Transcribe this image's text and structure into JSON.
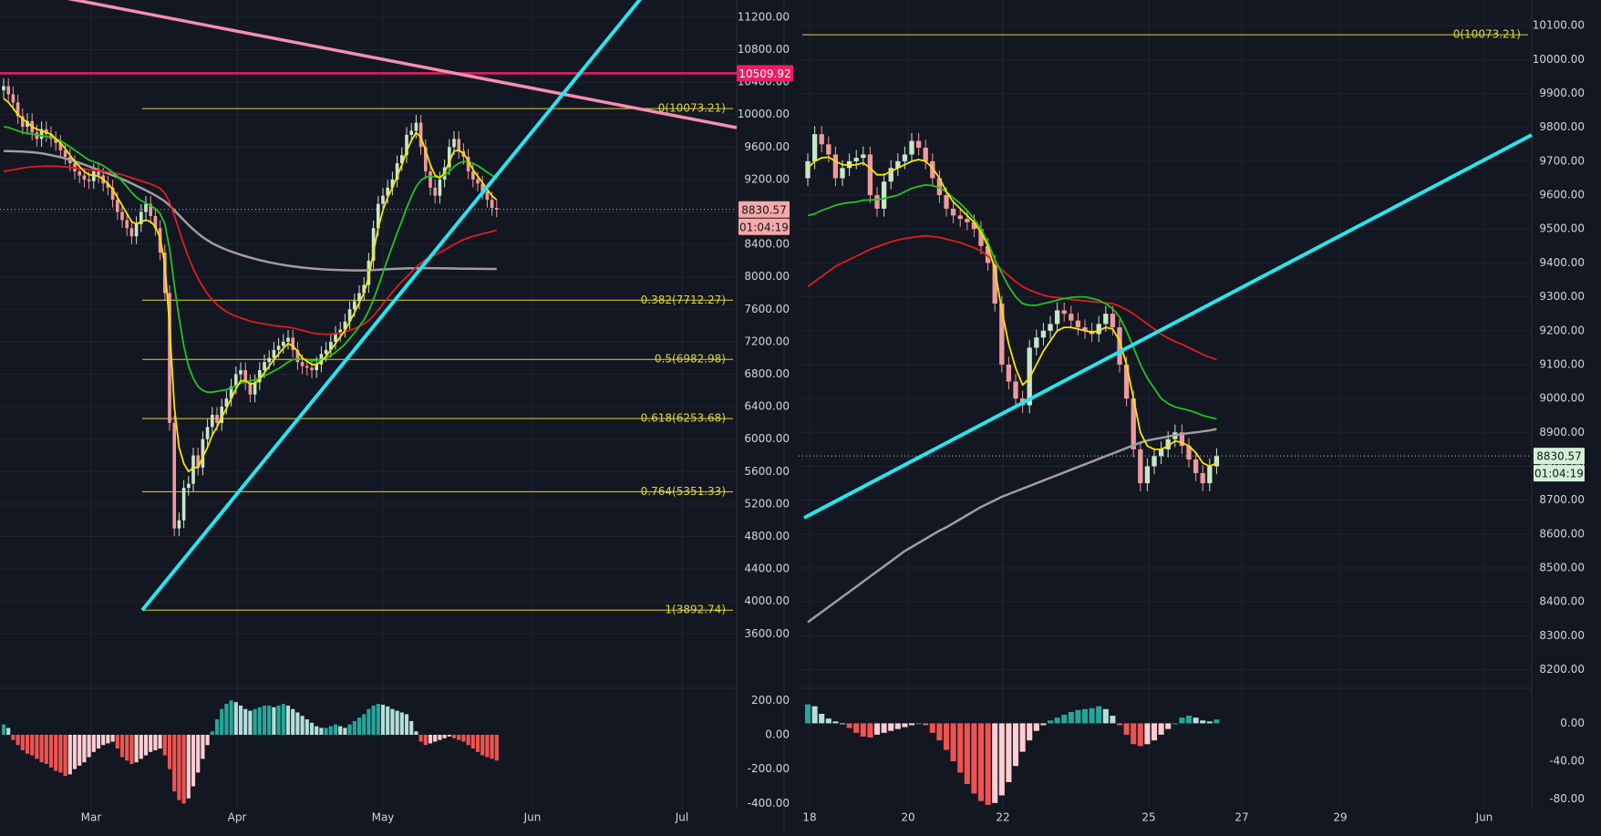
{
  "colors": {
    "background": "#131722",
    "grid": "#1f2433",
    "axis_text": "#d1d4dc",
    "up": "#c8e6c9",
    "down": "#ef9a9a",
    "fib": "#e0d43c",
    "trend_cyan": "#26e5f0",
    "trend_pink": "#f48fb1",
    "resistance": "#e91e63",
    "ma_yellow": "#f7e600",
    "ma_green": "#22c322",
    "ma_red": "#e01d1d",
    "ma_gray": "#9e9e9e",
    "hist_up_strong": "#26a69a",
    "hist_up_weak": "#b2dfdb",
    "hist_down_strong": "#ef5350",
    "hist_down_weak": "#ffcdd2"
  },
  "chart_data": [
    {
      "type": "candlestick",
      "panel": "left-daily",
      "x_ticks": [
        "Mar",
        "Apr",
        "May",
        "Jun",
        "Jul"
      ],
      "y_ticks": [
        "11200.00",
        "10800.00",
        "10400.00",
        "10000.00",
        "9600.00",
        "9200.00",
        "8800.00",
        "8400.00",
        "8000.00",
        "7600.00",
        "7200.00",
        "6800.00",
        "6400.00",
        "6000.00",
        "5600.00",
        "5200.00",
        "4800.00",
        "4400.00",
        "4000.00",
        "3600.00"
      ],
      "ylim": [
        3300,
        11300
      ],
      "price_label": "8830.57",
      "countdown_label": "01:04:19",
      "resistance_label": "10509.92",
      "resistance_value": 10509.92,
      "fib_levels": [
        {
          "label": "0(10073.21)",
          "value": 10073.21
        },
        {
          "label": "0.382(7712.27)",
          "value": 7712.27
        },
        {
          "label": "0.5(6982.98)",
          "value": 6982.98
        },
        {
          "label": "0.618(6253.68)",
          "value": 6253.68
        },
        {
          "label": "0.764(5351.33)",
          "value": 5351.33
        },
        {
          "label": "1(3892.74)",
          "value": 3892.74
        }
      ],
      "close": [
        10350,
        10250,
        10150,
        9980,
        9850,
        9920,
        9780,
        9700,
        9820,
        9760,
        9700,
        9650,
        9560,
        9480,
        9400,
        9300,
        9250,
        9200,
        9180,
        9300,
        9250,
        9150,
        9100,
        8950,
        8800,
        8700,
        8600,
        8500,
        8650,
        8800,
        8900,
        8750,
        8600,
        8300,
        7800,
        6200,
        4900,
        5000,
        5400,
        5450,
        5800,
        5650,
        6000,
        6150,
        6300,
        6200,
        6400,
        6500,
        6650,
        6800,
        6850,
        6700,
        6550,
        6700,
        6850,
        6950,
        7000,
        7100,
        7150,
        7200,
        7250,
        7100,
        6950,
        6900,
        6880,
        6850,
        6920,
        7050,
        7100,
        7200,
        7300,
        7350,
        7450,
        7600,
        7700,
        7800,
        7900,
        8200,
        8600,
        8900,
        9000,
        9100,
        9200,
        9400,
        9500,
        9750,
        9800,
        9900,
        9600,
        9300,
        9100,
        9000,
        9200,
        9350,
        9600,
        9700,
        9550,
        9480,
        9300,
        9200,
        9150,
        9050,
        8950,
        8850,
        8830
      ],
      "ma_yellow_series": [
        10200,
        10150,
        10080,
        10000,
        9950,
        9900,
        9850,
        9820,
        9800,
        9780,
        9760,
        9700,
        9650,
        9580,
        9500,
        9420,
        9360,
        9300,
        9260,
        9250,
        9240,
        9200,
        9150,
        9080,
        8980,
        8880,
        8780,
        8680,
        8650,
        8680,
        8700,
        8680,
        8620,
        8480,
        8150,
        7400,
        6400,
        5900,
        5700,
        5600,
        5650,
        5650,
        5780,
        5900,
        6050,
        6150,
        6270,
        6380,
        6500,
        6620,
        6720,
        6720,
        6680,
        6690,
        6740,
        6820,
        6900,
        6980,
        7050,
        7120,
        7180,
        7150,
        7080,
        7000,
        6960,
        6920,
        6920,
        6960,
        7020,
        7100,
        7180,
        7260,
        7340,
        7450,
        7560,
        7680,
        7800,
        8000,
        8300,
        8600,
        8820,
        8980,
        9100,
        9240,
        9380,
        9550,
        9680,
        9780,
        9720,
        9560,
        9380,
        9250,
        9220,
        9280,
        9420,
        9550,
        9560,
        9520,
        9430,
        9320,
        9240,
        9160,
        9080,
        9000,
        8950
      ],
      "ma_green_series": [
        9850,
        9840,
        9820,
        9800,
        9780,
        9770,
        9760,
        9750,
        9740,
        9730,
        9720,
        9700,
        9680,
        9640,
        9600,
        9560,
        9520,
        9480,
        9440,
        9420,
        9400,
        9370,
        9330,
        9290,
        9240,
        9180,
        9110,
        9040,
        8980,
        8940,
        8910,
        8880,
        8840,
        8780,
        8650,
        8350,
        7900,
        7500,
        7150,
        6900,
        6750,
        6650,
        6600,
        6580,
        6580,
        6590,
        6600,
        6610,
        6630,
        6660,
        6690,
        6710,
        6720,
        6730,
        6750,
        6780,
        6810,
        6840,
        6870,
        6910,
        6950,
        6980,
        6990,
        6990,
        6980,
        6970,
        6970,
        6980,
        7000,
        7030,
        7070,
        7120,
        7170,
        7240,
        7310,
        7390,
        7470,
        7580,
        7720,
        7880,
        8050,
        8220,
        8380,
        8540,
        8690,
        8850,
        8990,
        9110,
        9190,
        9230,
        9240,
        9230,
        9230,
        9250,
        9300,
        9360,
        9400,
        9420,
        9420,
        9400,
        9370,
        9330,
        9290,
        9250,
        9210
      ],
      "ma_red_series": [
        9300,
        9310,
        9320,
        9330,
        9340,
        9350,
        9355,
        9360,
        9362,
        9364,
        9365,
        9363,
        9360,
        9355,
        9350,
        9343,
        9335,
        9328,
        9320,
        9315,
        9310,
        9302,
        9293,
        9283,
        9272,
        9258,
        9240,
        9220,
        9200,
        9182,
        9165,
        9145,
        9120,
        9090,
        9030,
        8920,
        8760,
        8580,
        8400,
        8240,
        8100,
        7980,
        7880,
        7790,
        7720,
        7660,
        7610,
        7570,
        7540,
        7515,
        7495,
        7475,
        7455,
        7440,
        7430,
        7420,
        7410,
        7400,
        7392,
        7385,
        7380,
        7370,
        7355,
        7340,
        7325,
        7310,
        7300,
        7295,
        7292,
        7295,
        7300,
        7310,
        7322,
        7340,
        7362,
        7390,
        7420,
        7460,
        7520,
        7590,
        7665,
        7740,
        7810,
        7880,
        7940,
        8000,
        8060,
        8120,
        8170,
        8210,
        8240,
        8270,
        8300,
        8330,
        8365,
        8400,
        8430,
        8460,
        8480,
        8500,
        8515,
        8530,
        8545,
        8560,
        8575
      ],
      "ma_gray_series": [
        9550,
        9550,
        9548,
        9546,
        9544,
        9540,
        9536,
        9530,
        9522,
        9512,
        9500,
        9488,
        9475,
        9460,
        9443,
        9425,
        9405,
        9384,
        9362,
        9340,
        9318,
        9296,
        9274,
        9252,
        9230,
        9205,
        9180,
        9152,
        9124,
        9096,
        9066,
        9036,
        9004,
        8970,
        8930,
        8880,
        8820,
        8760,
        8700,
        8640,
        8585,
        8535,
        8490,
        8450,
        8415,
        8385,
        8358,
        8334,
        8312,
        8292,
        8273,
        8255,
        8238,
        8222,
        8207,
        8193,
        8180,
        8168,
        8157,
        8147,
        8138,
        8130,
        8122,
        8115,
        8109,
        8104,
        8099,
        8095,
        8091,
        8088,
        8086,
        8084,
        8082,
        8081,
        8080,
        8080,
        8080,
        8082,
        8085,
        8088,
        8092,
        8095,
        8098,
        8100,
        8102,
        8104,
        8106,
        8107,
        8108,
        8108,
        8108,
        8107,
        8106,
        8105,
        8104,
        8103,
        8102,
        8101,
        8100,
        8100,
        8099,
        8099,
        8098,
        8098,
        8098
      ],
      "osc_ylim": [
        -430,
        260
      ],
      "osc_ticks": [
        "200.00",
        "0.00",
        "-200.00",
        "-400.00"
      ],
      "osc_values": [
        60,
        40,
        -30,
        -60,
        -90,
        -110,
        -120,
        -140,
        -160,
        -170,
        -190,
        -210,
        -220,
        -240,
        -230,
        -200,
        -180,
        -160,
        -130,
        -100,
        -80,
        -60,
        -50,
        -40,
        -80,
        -130,
        -150,
        -170,
        -160,
        -140,
        -120,
        -100,
        -90,
        -80,
        -120,
        -200,
        -330,
        -380,
        -400,
        -370,
        -300,
        -220,
        -140,
        -60,
        20,
        90,
        150,
        180,
        200,
        190,
        170,
        150,
        140,
        150,
        160,
        170,
        170,
        160,
        170,
        180,
        170,
        150,
        130,
        110,
        90,
        70,
        50,
        40,
        40,
        50,
        60,
        50,
        40,
        60,
        80,
        100,
        120,
        150,
        170,
        180,
        175,
        165,
        150,
        140,
        130,
        120,
        80,
        20,
        -40,
        -60,
        -50,
        -40,
        -30,
        -20,
        -10,
        -20,
        -30,
        -40,
        -60,
        -80,
        -100,
        -120,
        -130,
        -140,
        -150
      ]
    },
    {
      "type": "candlestick",
      "panel": "right-intraday",
      "x_ticks": [
        "18",
        "20",
        "22",
        "25",
        "27",
        "29",
        "Jun"
      ],
      "y_ticks": [
        "10100.00",
        "10000.00",
        "9900.00",
        "9800.00",
        "9700.00",
        "9600.00",
        "9500.00",
        "9400.00",
        "9300.00",
        "9200.00",
        "9100.00",
        "9000.00",
        "8900.00",
        "8800.00",
        "8700.00",
        "8600.00",
        "8500.00",
        "8400.00",
        "8300.00",
        "8200.00"
      ],
      "ylim": [
        8180,
        10130
      ],
      "price_label": "8830.57",
      "countdown_label": "01:04:19",
      "fib_levels": [
        {
          "label": "0(10073.21)",
          "value": 10073.21
        }
      ],
      "close": [
        9700,
        9780,
        9750,
        9720,
        9650,
        9680,
        9700,
        9710,
        9720,
        9600,
        9560,
        9640,
        9680,
        9700,
        9720,
        9760,
        9740,
        9700,
        9650,
        9600,
        9560,
        9540,
        9530,
        9520,
        9500,
        9450,
        9400,
        9280,
        9100,
        9050,
        9000,
        8980,
        9150,
        9180,
        9200,
        9220,
        9260,
        9250,
        9230,
        9210,
        9200,
        9190,
        9220,
        9250,
        9210,
        9100,
        9000,
        8850,
        8750,
        8800,
        8830,
        8850,
        8880,
        8900,
        8860,
        8820,
        8780,
        8750,
        8800,
        8830
      ],
      "ma_yellow_series": [
        9680,
        9700,
        9710,
        9712,
        9700,
        9690,
        9688,
        9690,
        9695,
        9680,
        9660,
        9660,
        9670,
        9680,
        9690,
        9700,
        9705,
        9700,
        9680,
        9650,
        9610,
        9580,
        9560,
        9540,
        9520,
        9490,
        9450,
        9380,
        9260,
        9160,
        9090,
        9040,
        9060,
        9100,
        9140,
        9170,
        9200,
        9210,
        9210,
        9205,
        9200,
        9195,
        9200,
        9210,
        9205,
        9170,
        9100,
        9000,
        8900,
        8860,
        8850,
        8850,
        8860,
        8875,
        8870,
        8860,
        8840,
        8810,
        8800,
        8810
      ],
      "ma_green_series": [
        9540,
        9545,
        9555,
        9562,
        9570,
        9575,
        9578,
        9580,
        9585,
        9586,
        9587,
        9590,
        9595,
        9600,
        9610,
        9620,
        9626,
        9630,
        9628,
        9622,
        9610,
        9592,
        9575,
        9555,
        9530,
        9500,
        9460,
        9410,
        9370,
        9330,
        9300,
        9280,
        9275,
        9275,
        9280,
        9285,
        9290,
        9295,
        9298,
        9300,
        9300,
        9295,
        9290,
        9280,
        9265,
        9240,
        9200,
        9150,
        9100,
        9060,
        9030,
        9000,
        8985,
        8975,
        8970,
        8965,
        8958,
        8950,
        8945,
        8940
      ],
      "ma_red_series": [
        9330,
        9345,
        9360,
        9375,
        9390,
        9400,
        9410,
        9420,
        9430,
        9440,
        9448,
        9455,
        9462,
        9468,
        9472,
        9475,
        9478,
        9480,
        9478,
        9475,
        9470,
        9465,
        9460,
        9452,
        9445,
        9435,
        9420,
        9400,
        9380,
        9362,
        9345,
        9330,
        9320,
        9312,
        9305,
        9300,
        9298,
        9295,
        9292,
        9290,
        9288,
        9286,
        9284,
        9282,
        9280,
        9272,
        9262,
        9250,
        9235,
        9220,
        9205,
        9190,
        9178,
        9168,
        9160,
        9150,
        9140,
        9130,
        9122,
        9115
      ],
      "ma_gray_series": [
        8340,
        8355,
        8370,
        8385,
        8400,
        8415,
        8430,
        8445,
        8460,
        8475,
        8490,
        8505,
        8520,
        8535,
        8550,
        8562,
        8574,
        8586,
        8598,
        8610,
        8620,
        8632,
        8644,
        8656,
        8668,
        8680,
        8690,
        8700,
        8710,
        8718,
        8726,
        8734,
        8742,
        8750,
        8758,
        8766,
        8774,
        8782,
        8790,
        8798,
        8806,
        8814,
        8822,
        8830,
        8838,
        8846,
        8854,
        8862,
        8870,
        8876,
        8880,
        8884,
        8888,
        8892,
        8895,
        8898,
        8900,
        8903,
        8906,
        8910
      ],
      "osc_ylim": [
        -90,
        35
      ],
      "osc_ticks": [
        "0.00",
        "-40.00",
        "-80.00"
      ],
      "osc_values": [
        20,
        18,
        10,
        5,
        2,
        0,
        -5,
        -10,
        -14,
        -15,
        -12,
        -10,
        -8,
        -6,
        -4,
        -2,
        0,
        -2,
        -10,
        -18,
        -28,
        -40,
        -52,
        -64,
        -74,
        -82,
        -86,
        -84,
        -76,
        -62,
        -45,
        -30,
        -18,
        -8,
        -2,
        3,
        6,
        9,
        12,
        14,
        15,
        16,
        18,
        15,
        8,
        -2,
        -12,
        -22,
        -24,
        -22,
        -18,
        -12,
        -6,
        0,
        6,
        8,
        6,
        3,
        2,
        4
      ]
    }
  ]
}
